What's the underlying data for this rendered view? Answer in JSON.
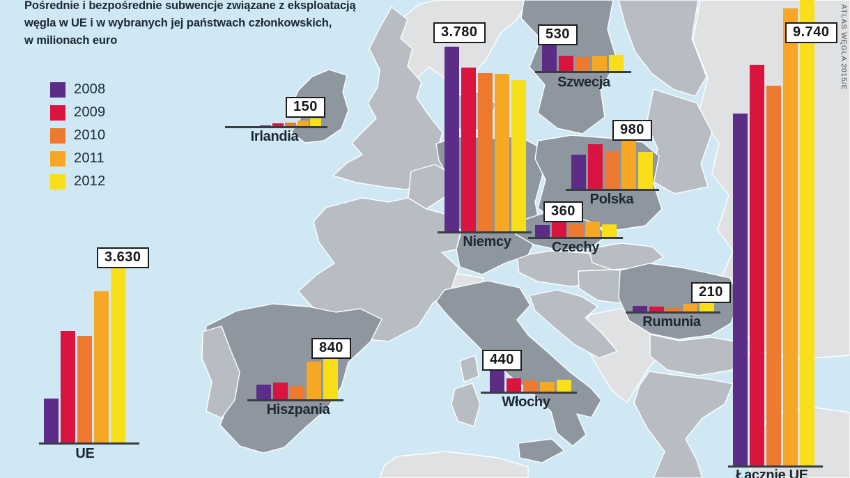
{
  "title": "Pośrednie i bezpośrednie subwencje związane z eksploatacją\nwęgla w UE i w wybranych jej państwach członkowskich,\nw milionach euro",
  "credit": "ATLAS WĘGLA 2015/E",
  "legend": {
    "items": [
      {
        "label": "2008",
        "color": "#5b2d87"
      },
      {
        "label": "2009",
        "color": "#d9143f"
      },
      {
        "label": "2010",
        "color": "#ee7a2f"
      },
      {
        "label": "2011",
        "color": "#f6a723"
      },
      {
        "label": "2012",
        "color": "#f8df19"
      }
    ]
  },
  "colors": {
    "sea": "#cfe8f4",
    "land_light": "#dfe1e3",
    "land_mid": "#b7bdc3",
    "land_highlight": "#8e97a0",
    "border": "#ffffff",
    "text": "#1b2733",
    "baseline": "#383d42"
  },
  "chart_data": {
    "type": "bar",
    "title": "Pośrednie i bezpośrednie subwencje związane z eksploatacją węgla w UE i w wybranych jej państwach członkowskich, w milionach euro",
    "categories": [
      "2008",
      "2009",
      "2010",
      "2011",
      "2012"
    ],
    "legend_position": "top-left",
    "grid": false,
    "unit": "mln euro",
    "charts": [
      {
        "id": "ue",
        "label": "UE",
        "value_label": "3.630",
        "labeled_year": "2012",
        "values": [
          900,
          2280,
          2180,
          3090,
          3630
        ]
      },
      {
        "id": "irlandia",
        "label": "Irlandia",
        "value_label": "150",
        "labeled_year": "2012",
        "values": [
          20,
          50,
          70,
          120,
          150
        ]
      },
      {
        "id": "niemcy",
        "label": "Niemcy",
        "value_label": "3.780",
        "labeled_year": "2008",
        "values": [
          3780,
          3350,
          3240,
          3220,
          3090
        ]
      },
      {
        "id": "szwecja",
        "label": "Szwecja",
        "value_label": "530",
        "labeled_year": "2008",
        "values": [
          530,
          310,
          280,
          310,
          330
        ]
      },
      {
        "id": "polska",
        "label": "Polska",
        "value_label": "980",
        "labeled_year": "2011",
        "values": [
          700,
          910,
          770,
          980,
          755
        ]
      },
      {
        "id": "czechy",
        "label": "Czechy",
        "value_label": "360",
        "labeled_year": "2009",
        "values": [
          240,
          360,
          270,
          320,
          260
        ]
      },
      {
        "id": "hiszpania",
        "label": "Hiszpania",
        "value_label": "840",
        "labeled_year": "2012",
        "values": [
          300,
          340,
          270,
          770,
          840
        ]
      },
      {
        "id": "wlochy",
        "label": "Włochy",
        "value_label": "440",
        "labeled_year": "2008",
        "values": [
          440,
          270,
          230,
          200,
          240
        ]
      },
      {
        "id": "rumunia",
        "label": "Rumunia",
        "value_label": "210",
        "labeled_year": "2012",
        "values": [
          120,
          100,
          70,
          160,
          210
        ]
      },
      {
        "id": "lacznie_ue",
        "label": "Łącznie UE",
        "value_label": "9.740",
        "labeled_year": "2012",
        "values": [
          7200,
          8200,
          7760,
          9350,
          9740
        ]
      }
    ]
  }
}
